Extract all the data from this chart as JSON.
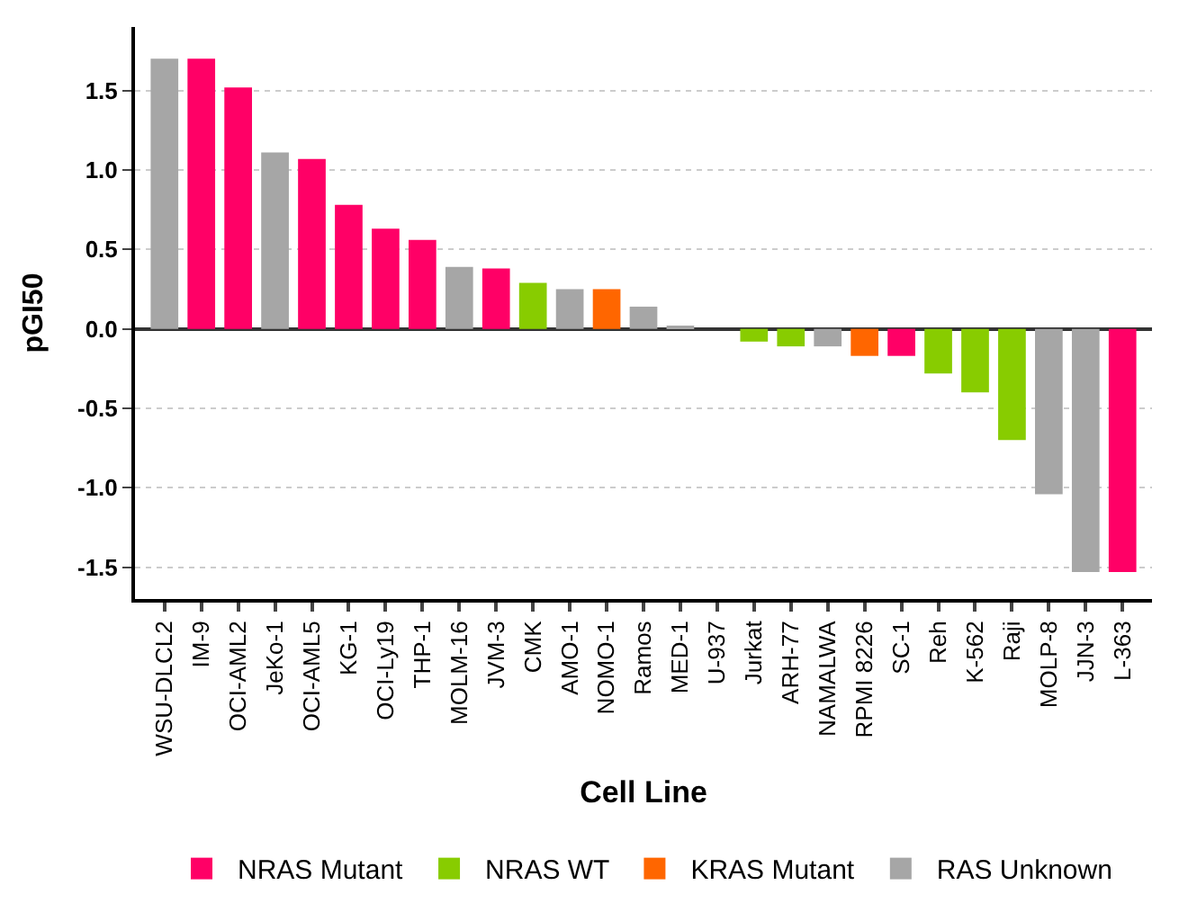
{
  "chart_data": {
    "type": "bar",
    "xlabel": "Cell Line",
    "ylabel": "pGI50",
    "categories": [
      "WSU-DLCL2",
      "IM-9",
      "OCI-AML2",
      "JeKo-1",
      "OCI-AML5",
      "KG-1",
      "OCI-Ly19",
      "THP-1",
      "MOLM-16",
      "JVM-3",
      "CMK",
      "AMO-1",
      "NOMO-1",
      "Ramos",
      "MED-1",
      "U-937",
      "Jurkat",
      "ARH-77",
      "NAMALWA",
      "RPMI 8226",
      "SC-1",
      "Reh",
      "K-562",
      "Raji",
      "MOLP-8",
      "JJN-3",
      "L-363"
    ],
    "series": [
      {
        "name": "NRAS Mutant",
        "color": "#ff0066",
        "values": [
          null,
          1.7,
          1.52,
          null,
          1.07,
          0.78,
          0.63,
          0.56,
          null,
          0.38,
          null,
          null,
          null,
          null,
          null,
          null,
          null,
          null,
          null,
          null,
          -0.17,
          null,
          null,
          null,
          null,
          null,
          -1.53
        ]
      },
      {
        "name": "NRAS WT",
        "color": "#88cc00",
        "values": [
          null,
          null,
          null,
          null,
          null,
          null,
          null,
          null,
          null,
          null,
          0.29,
          null,
          null,
          null,
          null,
          null,
          -0.08,
          -0.11,
          null,
          null,
          null,
          -0.28,
          -0.4,
          -0.7,
          null,
          null,
          null
        ]
      },
      {
        "name": "KRAS Mutant",
        "color": "#ff6600",
        "values": [
          null,
          null,
          null,
          null,
          null,
          null,
          null,
          null,
          null,
          null,
          null,
          null,
          0.25,
          null,
          null,
          null,
          null,
          null,
          null,
          -0.17,
          null,
          null,
          null,
          null,
          null,
          null,
          null
        ]
      },
      {
        "name": "RAS Unknown",
        "color": "#a6a6a6",
        "values": [
          1.7,
          null,
          null,
          1.11,
          null,
          null,
          null,
          null,
          0.39,
          null,
          null,
          0.25,
          null,
          0.14,
          0.01,
          0,
          null,
          null,
          -0.11,
          null,
          null,
          null,
          null,
          null,
          -1.04,
          -1.53,
          null
        ]
      }
    ],
    "ylim": [
      -1.7,
      1.9
    ],
    "yticks": [
      -1.5,
      {
        "value": -1.0,
        "label": "-1.0"
      },
      -0.5,
      {
        "value": 0.0,
        "label": "0.0"
      },
      0.5,
      {
        "value": 1.0,
        "label": "1.0"
      },
      1.5
    ],
    "grid": "y",
    "legend": "bottom"
  }
}
